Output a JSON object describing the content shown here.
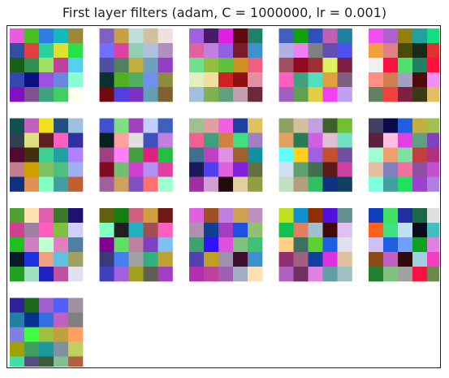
{
  "title": "First layer filters (adam, C = 1000000, lr = 0.001)",
  "grid": {
    "cols": 5,
    "filter_count": 16,
    "filter_size": 5,
    "filters": [
      [
        "#e85ce0",
        "#4ac020",
        "#2f7ee8",
        "#10b8c0",
        "#9a8a38",
        "#3050a0",
        "#e04040",
        "#2ad0a0",
        "#e0e030",
        "#28e048",
        "#186018",
        "#309050",
        "#a0e060",
        "#c040a0",
        "#58d0f0",
        "#3048b0",
        "#0a1080",
        "#a050e0",
        "#6888e0",
        "#88ffd0",
        "#8010c0",
        "#805090",
        "#40a080",
        "#40d060",
        "#fffff0"
      ],
      [
        "#8060c0",
        "#c8a040",
        "#c0e0e0",
        "#d0c0a0",
        "#f0e0e0",
        "#7070ff",
        "#e040a0",
        "#90d0b0",
        "#b0c0e0",
        "#b090c0",
        "#5050a0",
        "#508060",
        "#c0b040",
        "#70a0c0",
        "#9040c0",
        "#0a3030",
        "#50b020",
        "#50b060",
        "#7090f0",
        "#8c8c3c",
        "#700a10",
        "#5040e0",
        "#8030c0",
        "#60a0b0",
        "#806030"
      ],
      [
        "#a060e0",
        "#4a1a6a",
        "#e020e0",
        "#600810",
        "#208068",
        "#e060a0",
        "#c080e0",
        "#9060e0",
        "#7a1a2a",
        "#4090d0",
        "#70e090",
        "#90c040",
        "#60c040",
        "#d09020",
        "#f06080",
        "#e0f0c0",
        "#f0e0a0",
        "#d02020",
        "#901010",
        "#e090a0",
        "#a0c0e0",
        "#80b050",
        "#60a080",
        "#c0a0b0",
        "#6a2a3a"
      ],
      [
        "#4060c0",
        "#10a010",
        "#3050c0",
        "#c060b0",
        "#2080a0",
        "#b0b0e0",
        "#f080f0",
        "#808080",
        "#6050b0",
        "#5050f0",
        "#a05060",
        "#900a20",
        "#a03030",
        "#e0f060",
        "#802040",
        "#ff60c0",
        "#40a080",
        "#50e0c0",
        "#e0a040",
        "#806080",
        "#a060c0",
        "#60a050",
        "#e0d040",
        "#f040f0",
        "#c0a0f0"
      ],
      [
        "#f050f0",
        "#b060d0",
        "#908010",
        "#20a0a0",
        "#10e080",
        "#f0a040",
        "#e08080",
        "#4a4a0a",
        "#1a2a1a",
        "#e03030",
        "#f0f0f0",
        "#ff1040",
        "#50e070",
        "#208060",
        "#ff1040",
        "#ff9080",
        "#d08050",
        "#a0a0c0",
        "#500a0a",
        "#f090f0",
        "#608060",
        "#f04040",
        "#802040",
        "#3a3a1a",
        "#e0c060"
      ],
      [
        "#105050",
        "#c060c0",
        "#f0e020",
        "#205080",
        "#a0c0e0",
        "#304050",
        "#e0e080",
        "#602020",
        "#ff60c0",
        "#3030a0",
        "#500a30",
        "#403010",
        "#40d090",
        "#20a0a0",
        "#b080ff",
        "#c08090",
        "#d0a000",
        "#80c060",
        "#50c080",
        "#a0b0f0",
        "#103080",
        "#e09050",
        "#80ffc0",
        "#40a0a0",
        "#c06030"
      ],
      [
        "#4050d0",
        "#80e080",
        "#a040c0",
        "#c0d0ff",
        "#4060c0",
        "#0a2020",
        "#ffa0a0",
        "#e0e0e0",
        "#4050c0",
        "#c080e0",
        "#a04080",
        "#ff80ff",
        "#40a040",
        "#e02080",
        "#20c040",
        "#800a20",
        "#70c070",
        "#d040d0",
        "#b090f0",
        "#e040a0",
        "#a060a0",
        "#d0a060",
        "#8050c0",
        "#ff7070",
        "#a0ffd0"
      ],
      [
        "#a0c090",
        "#e0a0a0",
        "#f060e0",
        "#2040a0",
        "#e0c060",
        "#f06090",
        "#40a080",
        "#d08040",
        "#40e080",
        "#a080c0",
        "#407090",
        "#c040c0",
        "#e090e0",
        "#a06030",
        "#1090a0",
        "#1a1a5a",
        "#5040f0",
        "#e060e0",
        "#8020e0",
        "#607040",
        "#a030a0",
        "#d0a0d0",
        "#200a0a",
        "#e0d0a0",
        "#90a040"
      ],
      [
        "#90a060",
        "#d0c0a0",
        "#c0a0e0",
        "#40602a",
        "#70c030",
        "#e0a060",
        "#2a7a5a",
        "#d060e0",
        "#e0c0d0",
        "#70e0c0",
        "#60ffff",
        "#ffd020",
        "#a060e0",
        "#c05030",
        "#7050a0",
        "#d0e0f0",
        "#60a070",
        "#407050",
        "#5a1a1a",
        "#d040a0",
        "#c0e0c0",
        "#b0a080",
        "#30c060",
        "#103080",
        "#104060"
      ],
      [
        "#404060",
        "#0a0a4a",
        "#2060e0",
        "#c0b040",
        "#a0c050",
        "#5a2040",
        "#ffc0e0",
        "#e040e0",
        "#60a080",
        "#8040c0",
        "#a0ffd0",
        "#f0a070",
        "#80e0a0",
        "#c04040",
        "#b03080",
        "#e0c0a0",
        "#8080c0",
        "#f070a0",
        "#9050a0",
        "#c050d0",
        "#80ffe0",
        "#40a0a0",
        "#20e060",
        "#a040d0",
        "#b080e0"
      ],
      [
        "#50a030",
        "#ffe0b0",
        "#e060b0",
        "#3a7a2a",
        "#201070",
        "#d04090",
        "#a080a0",
        "#ff60c0",
        "#80c040",
        "#d0d0ff",
        "#20c020",
        "#d080c0",
        "#c0ffd0",
        "#e080c0",
        "#5080a0",
        "#0a1a2a",
        "#2030e0",
        "#f0a080",
        "#60c0e0",
        "#a0a060",
        "#20a020",
        "#a0e0c0",
        "#2020c0",
        "#c050a0",
        "#e0e0f0"
      ],
      [
        "#606010",
        "#108010",
        "#d06080",
        "#d0a040",
        "#701818",
        "#80ffc0",
        "#202020",
        "#20b0c0",
        "#a05050",
        "#ff60c0",
        "#800090",
        "#60e060",
        "#c080a0",
        "#8040c0",
        "#80c0f0",
        "#3a3a7a",
        "#4080f0",
        "#a0a0a0",
        "#30b080",
        "#c0a030",
        "#4040c0",
        "#a060e0",
        "#a0a020",
        "#606050",
        "#a040c0"
      ],
      [
        "#e060e0",
        "#a05020",
        "#c080e0",
        "#d0a050",
        "#c090c0",
        "#b090b0",
        "#104090",
        "#a040c0",
        "#2050e0",
        "#90c070",
        "#40a070",
        "#3010ff",
        "#e050e0",
        "#80c080",
        "#40c070",
        "#5040b0",
        "#c0a020",
        "#a090b0",
        "#401030",
        "#4090d0",
        "#b030b0",
        "#c040a0",
        "#a060b0",
        "#a0b0c0",
        "#ffe0b0"
      ],
      [
        "#c0e020",
        "#1090d0",
        "#903000",
        "#5010e0",
        "#609090",
        "#10c050",
        "#e08060",
        "#a0c0d0",
        "#400a0a",
        "#e0c0f0",
        "#ffd080",
        "#407060",
        "#60d030",
        "#2060e0",
        "#e0e0f0",
        "#903070",
        "#a06080",
        "#1040a0",
        "#e030e0",
        "#e0c0a0",
        "#b060c0",
        "#703060",
        "#e080e0",
        "#60a0a0",
        "#a0c0c0"
      ],
      [
        "#1040c0",
        "#40e060",
        "#2030a0",
        "#1a6a4a",
        "#e0e0e0",
        "#ff6020",
        "#40e080",
        "#c0e0f0",
        "#0a0a1a",
        "#40c0c0",
        "#d0c0f0",
        "#2060e0",
        "#70a0ff",
        "#10a020",
        "#e080e0",
        "#8a4a1a",
        "#c060c0",
        "#300a0a",
        "#a0d0e0",
        "#f040c0",
        "#208030",
        "#80c080",
        "#a0a0a0",
        "#ff1040",
        "#6a8a4a"
      ],
      [
        "#30209a",
        "#1a6a1a",
        "#a060d0",
        "#5060ff",
        "#a090a0",
        "#2080a0",
        "#0a3090",
        "#3070e0",
        "#c060c0",
        "#808080",
        "#8080e0",
        "#40ff40",
        "#a0c040",
        "#c0a040",
        "#ffa060",
        "#a0a000",
        "#40a060",
        "#1a9aa0",
        "#8090a0",
        "#c0d060",
        "#40e0a0",
        "#505080",
        "#3a5a3a",
        "#80c090",
        "#b06040"
      ]
    ]
  }
}
